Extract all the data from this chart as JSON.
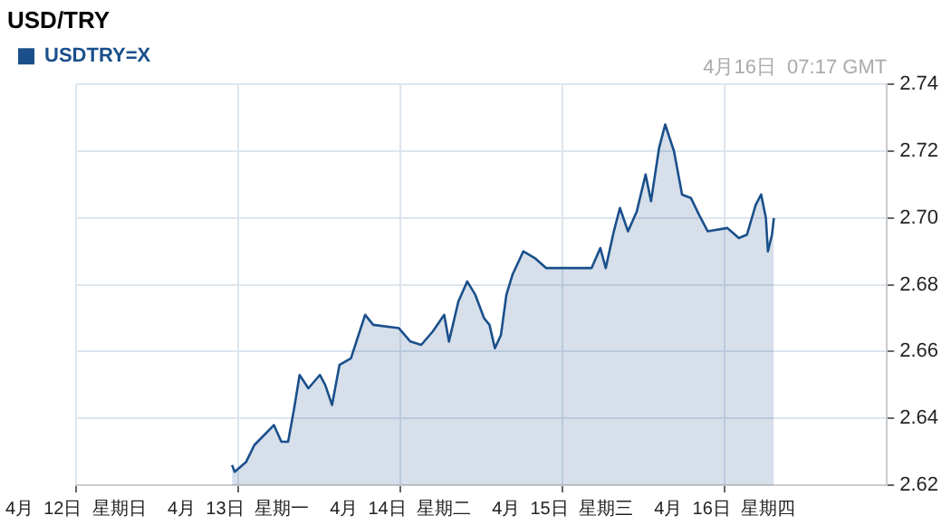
{
  "chart_data": {
    "type": "area",
    "title": "USD/TRY",
    "annotations": [
      "4月16日  07:17 GMT"
    ],
    "legend": "top left",
    "grid": true,
    "xlim": [
      "--04-12",
      "--04-17"
    ],
    "xticks": [
      {
        "value": "--04-12",
        "label": "4月  12日  星期日"
      },
      {
        "value": "--04-13",
        "label": "4月  13日  星期一"
      },
      {
        "value": "--04-14",
        "label": "4月  14日  星期二"
      },
      {
        "value": "--04-15",
        "label": "4月  15日  星期三"
      },
      {
        "value": "--04-16",
        "label": "4月  16日  星期四"
      }
    ],
    "ylim": [
      2.62,
      2.74
    ],
    "yticks": [
      {
        "value": 2.62,
        "label": "2.62"
      },
      {
        "value": 2.64,
        "label": "2.64"
      },
      {
        "value": 2.66,
        "label": "2.66"
      },
      {
        "value": 2.68,
        "label": "2.68"
      },
      {
        "value": 2.7,
        "label": "2.70"
      },
      {
        "value": 2.72,
        "label": "2.72"
      },
      {
        "value": 2.74,
        "label": "2.74"
      }
    ],
    "x": [
      "--04-12T23:06",
      "--04-12T23:30",
      "--04-13T01:12",
      "--04-13T02:24",
      "--04-13T05:18",
      "--04-13T06:24",
      "--04-13T07:24",
      "--04-13T08:18",
      "--04-13T09:06",
      "--04-13T10:24",
      "--04-13T12:06",
      "--04-13T12:54",
      "--04-13T13:54",
      "--04-13T15:00",
      "--04-13T16:42",
      "--04-13T17:30",
      "--04-13T18:48",
      "--04-13T20:00",
      "--04-13T23:48",
      "--04-14T01:30",
      "--04-14T03:06",
      "--04-14T04:48",
      "--04-14T06:30",
      "--04-14T07:12",
      "--04-14T08:36",
      "--04-14T09:54",
      "--04-14T11:06",
      "--04-14T12:24",
      "--04-14T13:12",
      "--04-14T14:00",
      "--04-14T14:54",
      "--04-14T15:42",
      "--04-14T16:36",
      "--04-14T18:12",
      "--04-14T19:54",
      "--04-14T21:36",
      "--04-15T00:54",
      "--04-15T04:18",
      "--04-15T05:36",
      "--04-15T06:24",
      "--04-15T07:36",
      "--04-15T08:30",
      "--04-15T09:42",
      "--04-15T11:00",
      "--04-15T12:18",
      "--04-15T13:06",
      "--04-15T14:18",
      "--04-15T15:12",
      "--04-15T16:30",
      "--04-15T17:42",
      "--04-15T19:00",
      "--04-15T20:12",
      "--04-15T21:30",
      "--04-16T00:24",
      "--04-16T02:06",
      "--04-16T03:18",
      "--04-16T04:36",
      "--04-16T05:24",
      "--04-16T06:06",
      "--04-16T06:24",
      "--04-16T07:00",
      "--04-16T07:17"
    ],
    "series": [
      {
        "name": "USDTRY=X",
        "color": "#1a4f8b",
        "values": [
          2.626,
          2.624,
          2.627,
          2.632,
          2.638,
          2.633,
          2.633,
          2.643,
          2.653,
          2.649,
          2.653,
          2.65,
          2.644,
          2.656,
          2.658,
          2.663,
          2.671,
          2.668,
          2.667,
          2.663,
          2.662,
          2.666,
          2.671,
          2.663,
          2.675,
          2.681,
          2.677,
          2.67,
          2.668,
          2.661,
          2.665,
          2.677,
          2.683,
          2.69,
          2.688,
          2.685,
          2.685,
          2.685,
          2.691,
          2.685,
          2.696,
          2.703,
          2.696,
          2.702,
          2.713,
          2.705,
          2.721,
          2.728,
          2.72,
          2.707,
          2.706,
          2.701,
          2.696,
          2.697,
          2.694,
          2.695,
          2.704,
          2.707,
          2.7,
          2.69,
          2.695,
          2.7
        ]
      }
    ]
  }
}
